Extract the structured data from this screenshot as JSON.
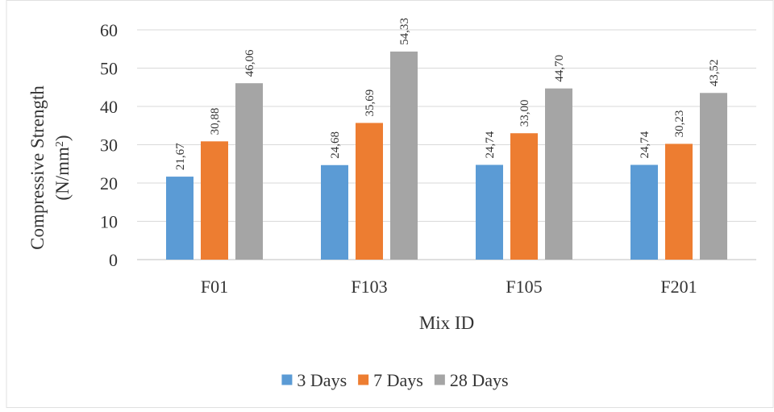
{
  "chart_data": {
    "type": "bar",
    "categories": [
      "F01",
      "F103",
      "F105",
      "F201"
    ],
    "series": [
      {
        "name": "3 Days",
        "values": [
          21.67,
          24.68,
          24.74,
          24.74
        ],
        "labels": [
          "21,67",
          "24,68",
          "24,74",
          "24,74"
        ],
        "color": "#5b9bd5"
      },
      {
        "name": "7 Days",
        "values": [
          30.88,
          35.69,
          33.0,
          30.23
        ],
        "labels": [
          "30,88",
          "35,69",
          "33,00",
          "30,23"
        ],
        "color": "#ed7d31"
      },
      {
        "name": "28 Days",
        "values": [
          46.06,
          54.33,
          44.7,
          43.52
        ],
        "labels": [
          "46,06",
          "54,33",
          "44,70",
          "43,52"
        ],
        "color": "#a5a5a5"
      }
    ],
    "xlabel": "Mix ID",
    "ylabel_line1": "Compressive Strength",
    "ylabel_line2_base": "(N/mm",
    "ylabel_line2_sup": "2",
    "ylabel_line2_end": ")",
    "ylim": [
      0,
      60
    ],
    "yticks": [
      "0",
      "10",
      "20",
      "30",
      "40",
      "50",
      "60"
    ],
    "grid": true,
    "legend_position": "bottom",
    "gridline_color": "#d9d9d9",
    "axis_color": "#bfbfbf"
  }
}
